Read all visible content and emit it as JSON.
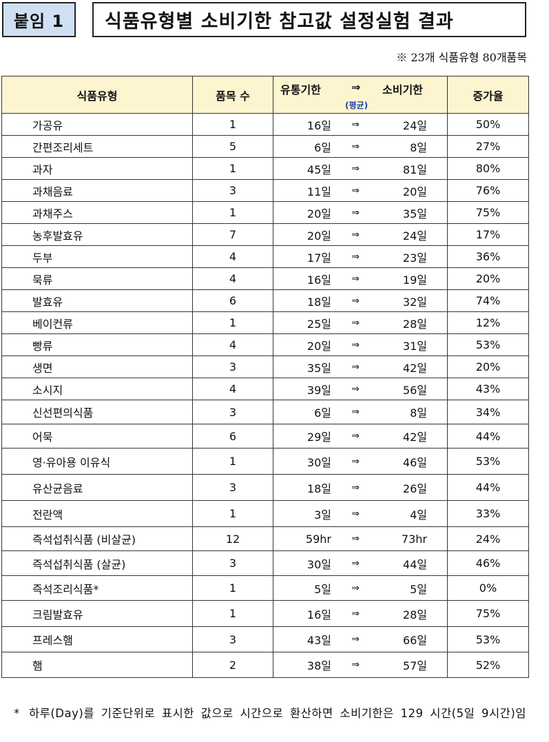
{
  "header": {
    "badge": "붙임 1",
    "title": "식품유형별 소비기한 참고값 설정실험 결과",
    "note": "※ 23개 식품유형 80개품목"
  },
  "table": {
    "headers": {
      "type": "식품유형",
      "count": "품목 수",
      "expiry_from": "유통기한",
      "arrow": "⇒",
      "expiry_to": "소비기한",
      "sub": "(평균)",
      "increase": "증가율"
    },
    "arrow": "⇒",
    "rows": [
      {
        "type": "가공유",
        "count": "1",
        "from": "16일",
        "to": "24일",
        "rate": "50%"
      },
      {
        "type": "간편조리세트",
        "count": "5",
        "from": "6일",
        "to": "8일",
        "rate": "27%"
      },
      {
        "type": "과자",
        "count": "1",
        "from": "45일",
        "to": "81일",
        "rate": "80%"
      },
      {
        "type": "과채음료",
        "count": "3",
        "from": "11일",
        "to": "20일",
        "rate": "76%"
      },
      {
        "type": "과채주스",
        "count": "1",
        "from": "20일",
        "to": "35일",
        "rate": "75%"
      },
      {
        "type": "농후발효유",
        "count": "7",
        "from": "20일",
        "to": "24일",
        "rate": "17%"
      },
      {
        "type": "두부",
        "count": "4",
        "from": "17일",
        "to": "23일",
        "rate": "36%"
      },
      {
        "type": "묵류",
        "count": "4",
        "from": "16일",
        "to": "19일",
        "rate": "20%"
      },
      {
        "type": "발효유",
        "count": "6",
        "from": "18일",
        "to": "32일",
        "rate": "74%"
      },
      {
        "type": "베이컨류",
        "count": "1",
        "from": "25일",
        "to": "28일",
        "rate": "12%"
      },
      {
        "type": "빵류",
        "count": "4",
        "from": "20일",
        "to": "31일",
        "rate": "53%"
      },
      {
        "type": "생면",
        "count": "3",
        "from": "35일",
        "to": "42일",
        "rate": "20%"
      },
      {
        "type": "소시지",
        "count": "4",
        "from": "39일",
        "to": "56일",
        "rate": "43%"
      },
      {
        "type": "신선편의식품",
        "count": "3",
        "from": "6일",
        "to": "8일",
        "rate": "34%"
      },
      {
        "type": "어묵",
        "count": "6",
        "from": "29일",
        "to": "42일",
        "rate": "44%"
      },
      {
        "type": "영·유아용 이유식",
        "count": "1",
        "from": "30일",
        "to": "46일",
        "rate": "53%"
      },
      {
        "type": "유산균음료",
        "count": "3",
        "from": "18일",
        "to": "26일",
        "rate": "44%"
      },
      {
        "type": "전란액",
        "count": "1",
        "from": "3일",
        "to": "4일",
        "rate": "33%"
      },
      {
        "type": "즉석섭취식품 (비살균)",
        "count": "12",
        "from": "59hr",
        "to": "73hr",
        "rate": "24%"
      },
      {
        "type": "즉석섭취식품 (살균)",
        "count": "3",
        "from": "30일",
        "to": "44일",
        "rate": "46%"
      },
      {
        "type": "즉석조리식품*",
        "count": "1",
        "from": "5일",
        "to": "5일",
        "rate": "0%"
      },
      {
        "type": "크림발효유",
        "count": "1",
        "from": "16일",
        "to": "28일",
        "rate": "75%"
      },
      {
        "type": "프레스햄",
        "count": "3",
        "from": "43일",
        "to": "66일",
        "rate": "53%"
      },
      {
        "type": "햄",
        "count": "2",
        "from": "38일",
        "to": "57일",
        "rate": "52%"
      }
    ]
  },
  "footnote": {
    "mark": "*",
    "text": "하루(Day)를 기준단위로 표시한 값으로 시간으로 환산하면 소비기한은 129 시간(5일 9시간)임"
  }
}
